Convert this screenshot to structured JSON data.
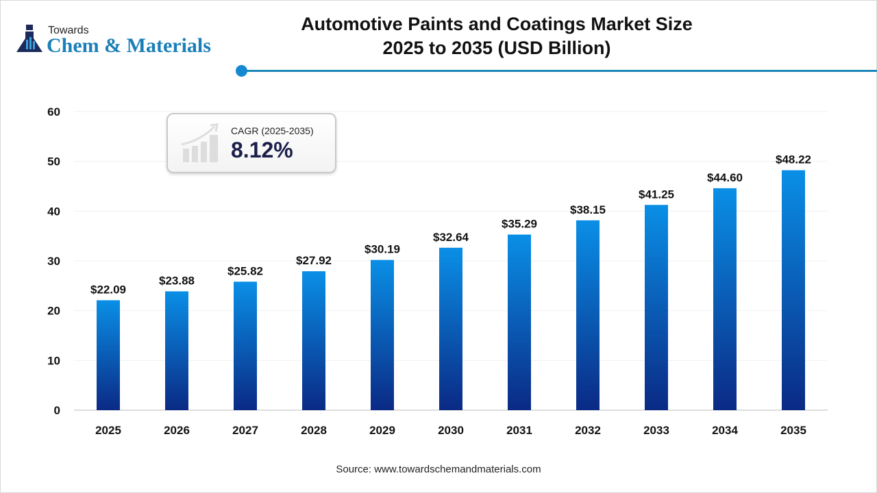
{
  "logo": {
    "towards": "Towards",
    "main": "Chem & Materials"
  },
  "chart_data": {
    "type": "bar",
    "title": "Automotive Paints and Coatings Market Size\n2025 to 2035 (USD Billion)",
    "title_line1": "Automotive Paints and Coatings Market Size",
    "title_line2": "2025 to 2035 (USD Billion)",
    "categories": [
      "2025",
      "2026",
      "2027",
      "2028",
      "2029",
      "2030",
      "2031",
      "2032",
      "2033",
      "2034",
      "2035"
    ],
    "values": [
      22.09,
      23.88,
      25.82,
      27.92,
      30.19,
      32.64,
      35.29,
      38.15,
      41.25,
      44.6,
      48.22
    ],
    "data_labels": [
      "$22.09",
      "$23.88",
      "$25.82",
      "$27.92",
      "$30.19",
      "$32.64",
      "$35.29",
      "$38.15",
      "$41.25",
      "$44.60",
      "$48.22"
    ],
    "yticks": [
      0,
      10,
      20,
      30,
      40,
      50,
      60
    ],
    "ylim": [
      0,
      60
    ],
    "grid": true,
    "bar_color_top": "#0a8fe6",
    "bar_color_bottom": "#0a2a85",
    "annotation": {
      "label": "CAGR (2025-2035)",
      "value": "8.12%"
    },
    "source": "Source: www.towardschemandmaterials.com"
  }
}
